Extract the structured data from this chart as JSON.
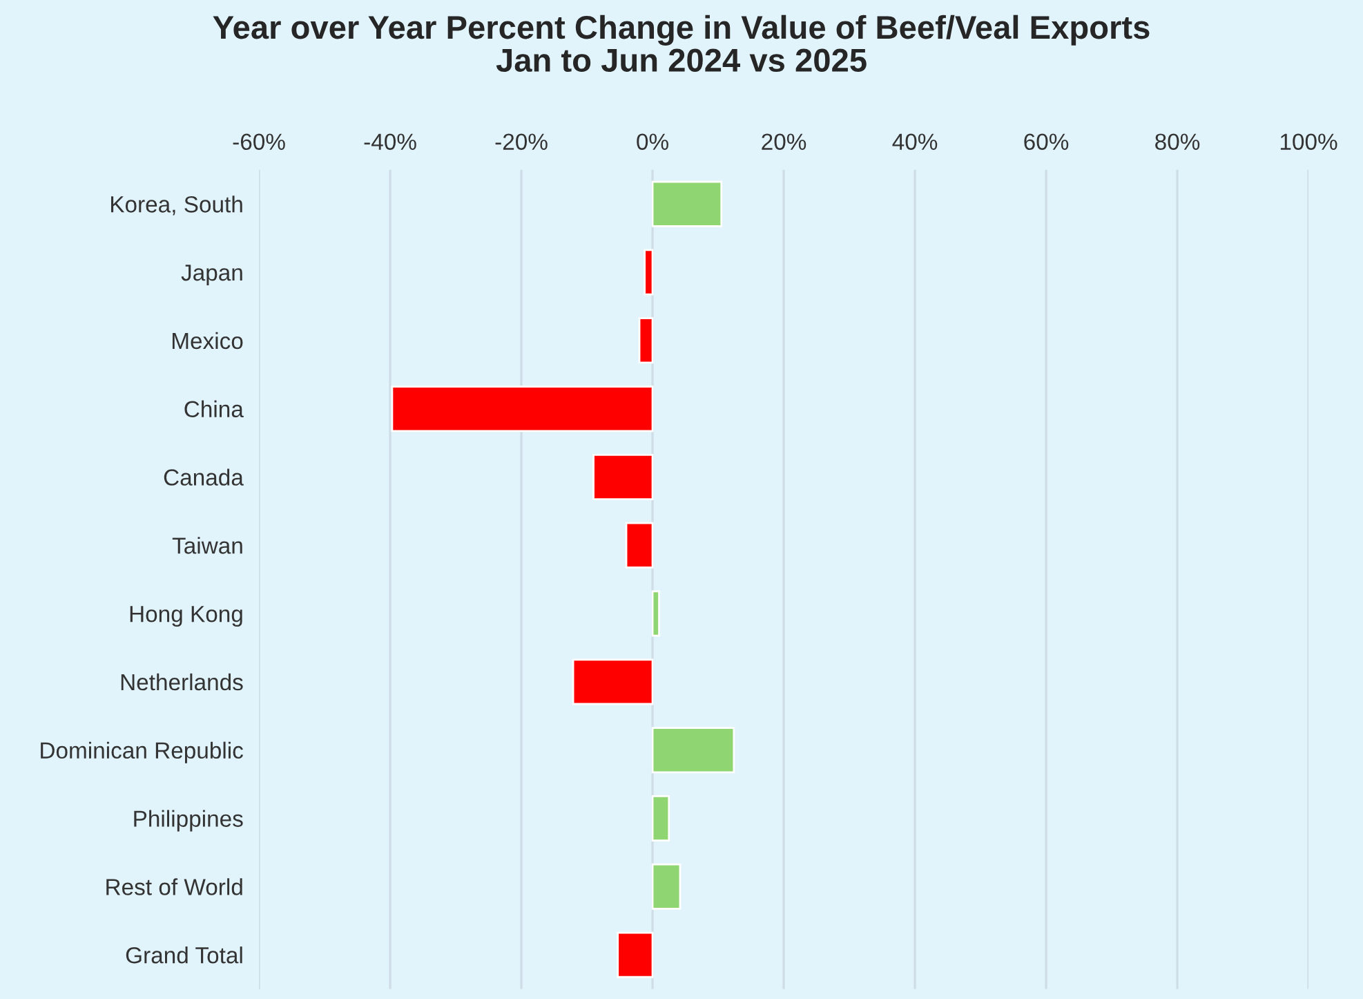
{
  "chart_data": {
    "type": "bar",
    "orientation": "horizontal",
    "title": "Year over Year Percent Change in Value of Beef/Veal Exports\nJan to Jun 2024 vs 2025",
    "categories": [
      "Korea, South",
      "Japan",
      "Mexico",
      "China",
      "Canada",
      "Taiwan",
      "Hong Kong",
      "Netherlands",
      "Dominican Republic",
      "Philippines",
      "Rest of World",
      "Grand Total"
    ],
    "values": [
      10.5,
      -1.2,
      -2.0,
      -39.7,
      -9.0,
      -4.0,
      1.0,
      -12.1,
      12.4,
      2.5,
      4.2,
      -5.3
    ],
    "colors": [
      "#8fd672",
      "#ff0000",
      "#ff0000",
      "#ff0000",
      "#ff0000",
      "#ff0000",
      "#8fd672",
      "#ff0000",
      "#8fd672",
      "#8fd672",
      "#8fd672",
      "#ff0000"
    ],
    "xlim": [
      -60,
      100
    ],
    "xticks": [
      {
        "value": -60,
        "label": "-60%"
      },
      {
        "value": -40,
        "label": "-40%"
      },
      {
        "value": -20,
        "label": "-20%"
      },
      {
        "value": 0,
        "label": "0%"
      },
      {
        "value": 20,
        "label": "20%"
      },
      {
        "value": 40,
        "label": "40%"
      },
      {
        "value": 60,
        "label": "60%"
      },
      {
        "value": 80,
        "label": "80%"
      },
      {
        "value": 100,
        "label": "100%"
      }
    ],
    "grid": "x",
    "legend": false
  }
}
